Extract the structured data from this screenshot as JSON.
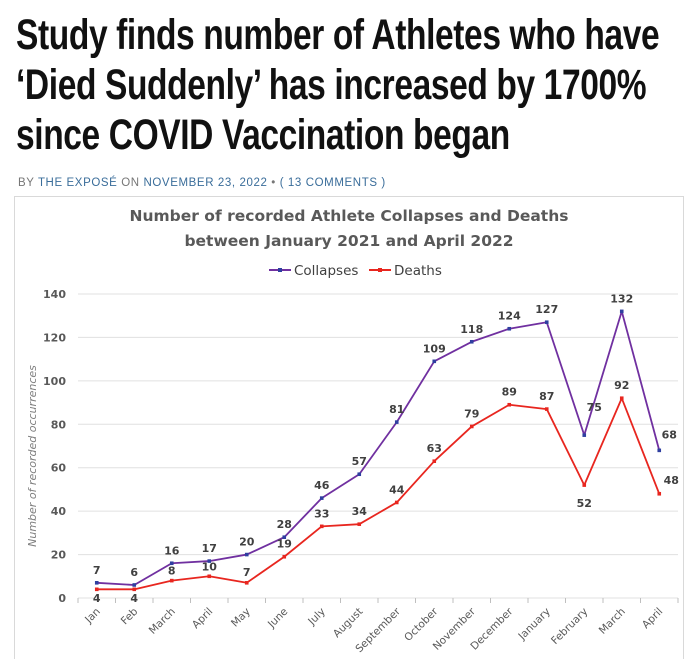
{
  "article": {
    "headline_lines": [
      "Study finds number of Athletes who have",
      "‘Died Suddenly’ has increased by 1700%",
      "since COVID Vaccination began"
    ],
    "byline_prefix": "BY",
    "author": "THE EXPOSÉ",
    "on_label": "ON",
    "date": "NOVEMBER 23, 2022",
    "separator": "•",
    "comments": "( 13 COMMENTS )"
  },
  "chart_data": {
    "type": "line",
    "title_lines": [
      "Number of recorded Athlete Collapses and Deaths",
      "between January 2021 and April 2022"
    ],
    "ylabel": "Number of recorded occurrences",
    "xlabel": "",
    "ylim": [
      0,
      140
    ],
    "yticks": [
      0,
      20,
      40,
      60,
      80,
      100,
      120,
      140
    ],
    "grid": true,
    "legend_position": "top",
    "categories": [
      "Jan",
      "Feb",
      "March",
      "April",
      "May",
      "June",
      "July",
      "August",
      "September",
      "October",
      "November",
      "December",
      "January",
      "February",
      "March",
      "April"
    ],
    "series": [
      {
        "name": "Collapses",
        "color": "#7030a0",
        "values": [
          7,
          6,
          16,
          17,
          20,
          28,
          46,
          57,
          81,
          109,
          118,
          124,
          127,
          75,
          132,
          68
        ]
      },
      {
        "name": "Deaths",
        "color": "#e8261f",
        "values": [
          4,
          4,
          8,
          10,
          7,
          19,
          33,
          34,
          44,
          63,
          79,
          89,
          87,
          52,
          92,
          48
        ]
      }
    ]
  }
}
